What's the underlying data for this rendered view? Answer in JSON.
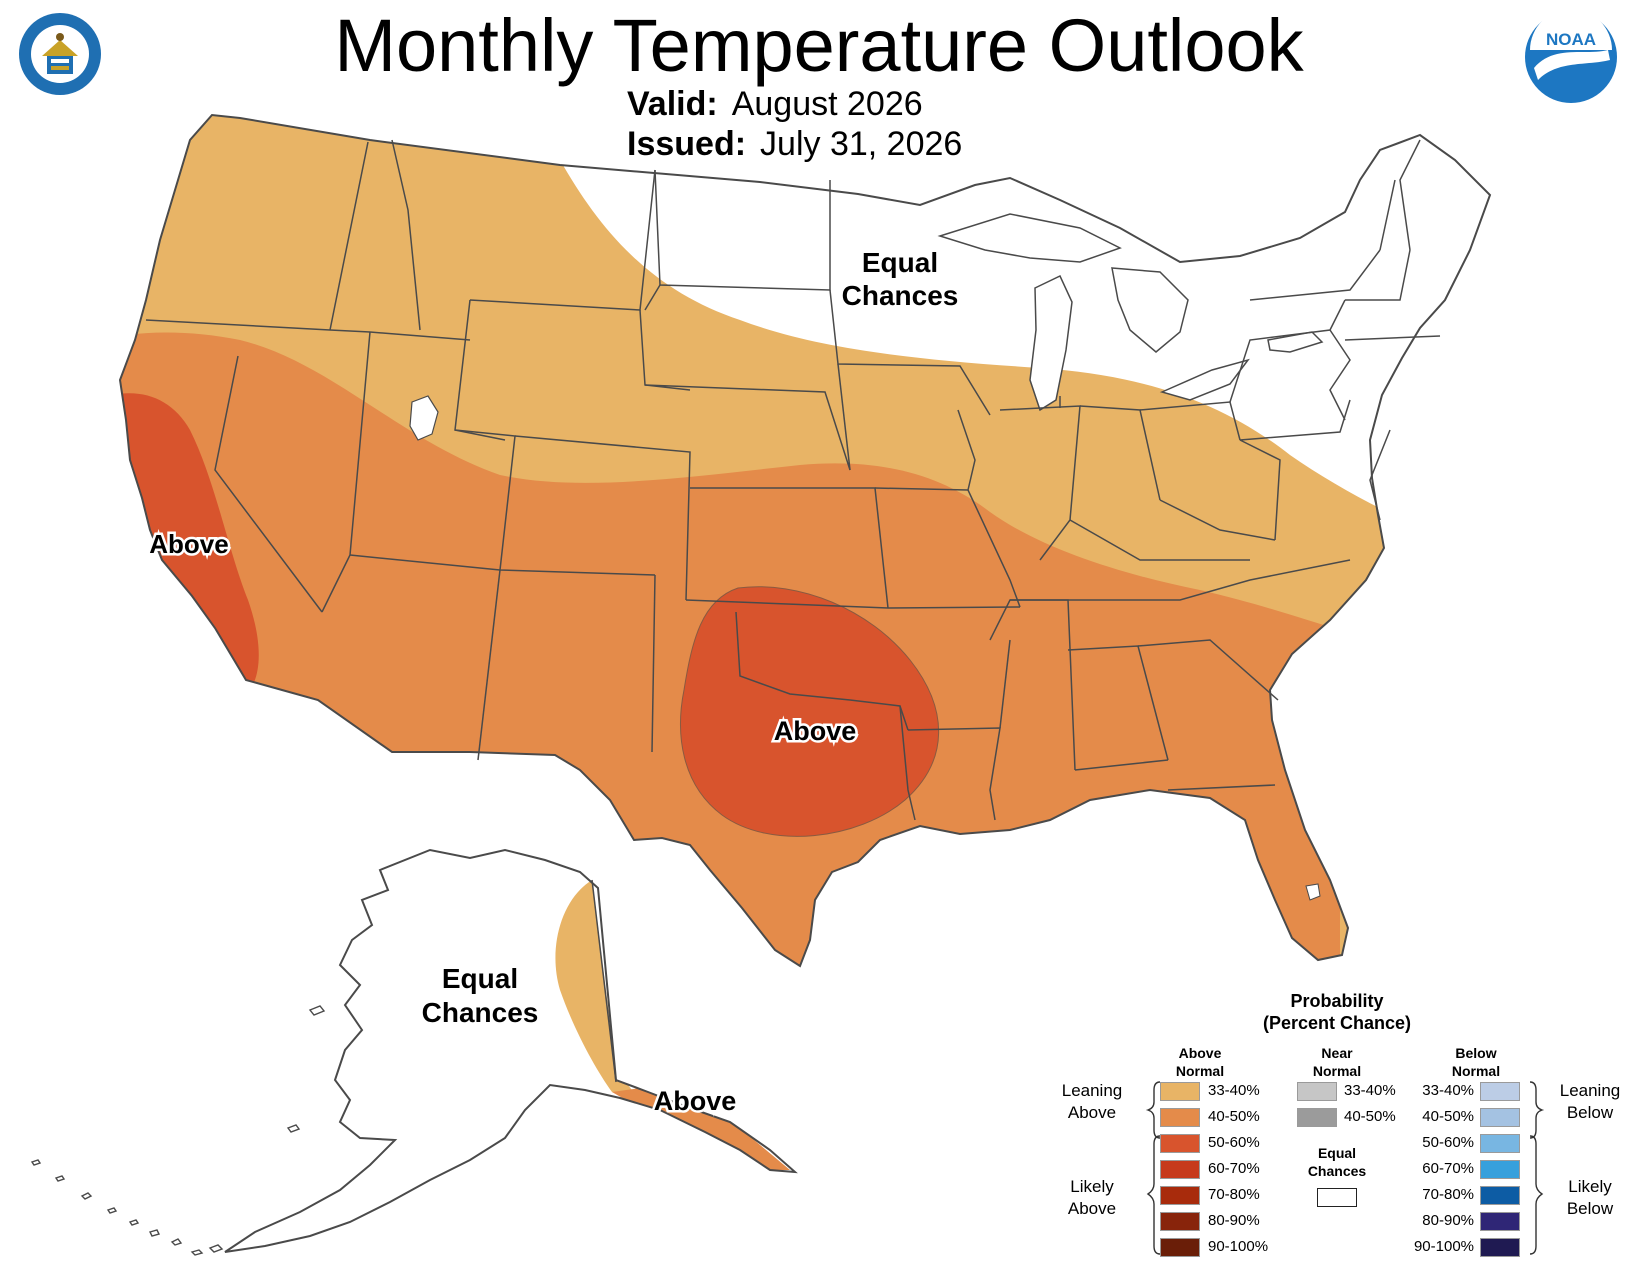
{
  "header": {
    "title": "Monthly Temperature Outlook",
    "valid_label": "Valid:",
    "valid_value": "August 2026",
    "issued_label": "Issued:",
    "issued_value": "July 31, 2026"
  },
  "logos": {
    "commerce": {
      "icon": "department-of-commerce-seal",
      "ring_color": "#1f6fb2"
    },
    "noaa": {
      "icon": "noaa-logo",
      "text": "NOAA",
      "color": "#1d77c2"
    }
  },
  "map": {
    "colors": {
      "leaning_above": "#e8b466",
      "above_40_50": "#e48b4a",
      "above_50_60": "#d8542d",
      "equal_chances": "#ffffff",
      "border": "#4a4a4a"
    },
    "labels": {
      "conus_equal_line1": "Equal",
      "conus_equal_line2": "Chances",
      "west_coast_above": "Above",
      "plains_above": "Above",
      "alaska_equal_line1": "Equal",
      "alaska_equal_line2": "Chances",
      "alaska_above": "Above"
    }
  },
  "legend": {
    "title_line1": "Probability",
    "title_line2": "(Percent Chance)",
    "columns": {
      "above_line1": "Above",
      "above_line2": "Normal",
      "near_line1": "Near",
      "near_line2": "Normal",
      "below_line1": "Below",
      "below_line2": "Normal"
    },
    "groups": {
      "leaning_above_line1": "Leaning",
      "leaning_above_line2": "Above",
      "likely_above_line1": "Likely",
      "likely_above_line2": "Above",
      "leaning_below_line1": "Leaning",
      "leaning_below_line2": "Below",
      "likely_below_line1": "Likely",
      "likely_below_line2": "Below",
      "equal_line1": "Equal",
      "equal_line2": "Chances"
    },
    "above": [
      {
        "label": "33-40%",
        "color": "#e8b466"
      },
      {
        "label": "40-50%",
        "color": "#e48b4a"
      },
      {
        "label": "50-60%",
        "color": "#d8542d"
      },
      {
        "label": "60-70%",
        "color": "#c63a1c"
      },
      {
        "label": "70-80%",
        "color": "#a82b0c"
      },
      {
        "label": "80-90%",
        "color": "#88240b"
      },
      {
        "label": "90-100%",
        "color": "#6a1e08"
      }
    ],
    "near": [
      {
        "label": "33-40%",
        "color": "#c6c6c6"
      },
      {
        "label": "40-50%",
        "color": "#9b9b9b"
      }
    ],
    "below": [
      {
        "label": "33-40%",
        "color": "#bccde6"
      },
      {
        "label": "40-50%",
        "color": "#a4c2e2"
      },
      {
        "label": "50-60%",
        "color": "#78b6e2"
      },
      {
        "label": "60-70%",
        "color": "#37a0dc"
      },
      {
        "label": "70-80%",
        "color": "#0d5ca4"
      },
      {
        "label": "80-90%",
        "color": "#2f2676"
      },
      {
        "label": "90-100%",
        "color": "#1f1a52"
      }
    ],
    "equal_color": "#ffffff"
  }
}
